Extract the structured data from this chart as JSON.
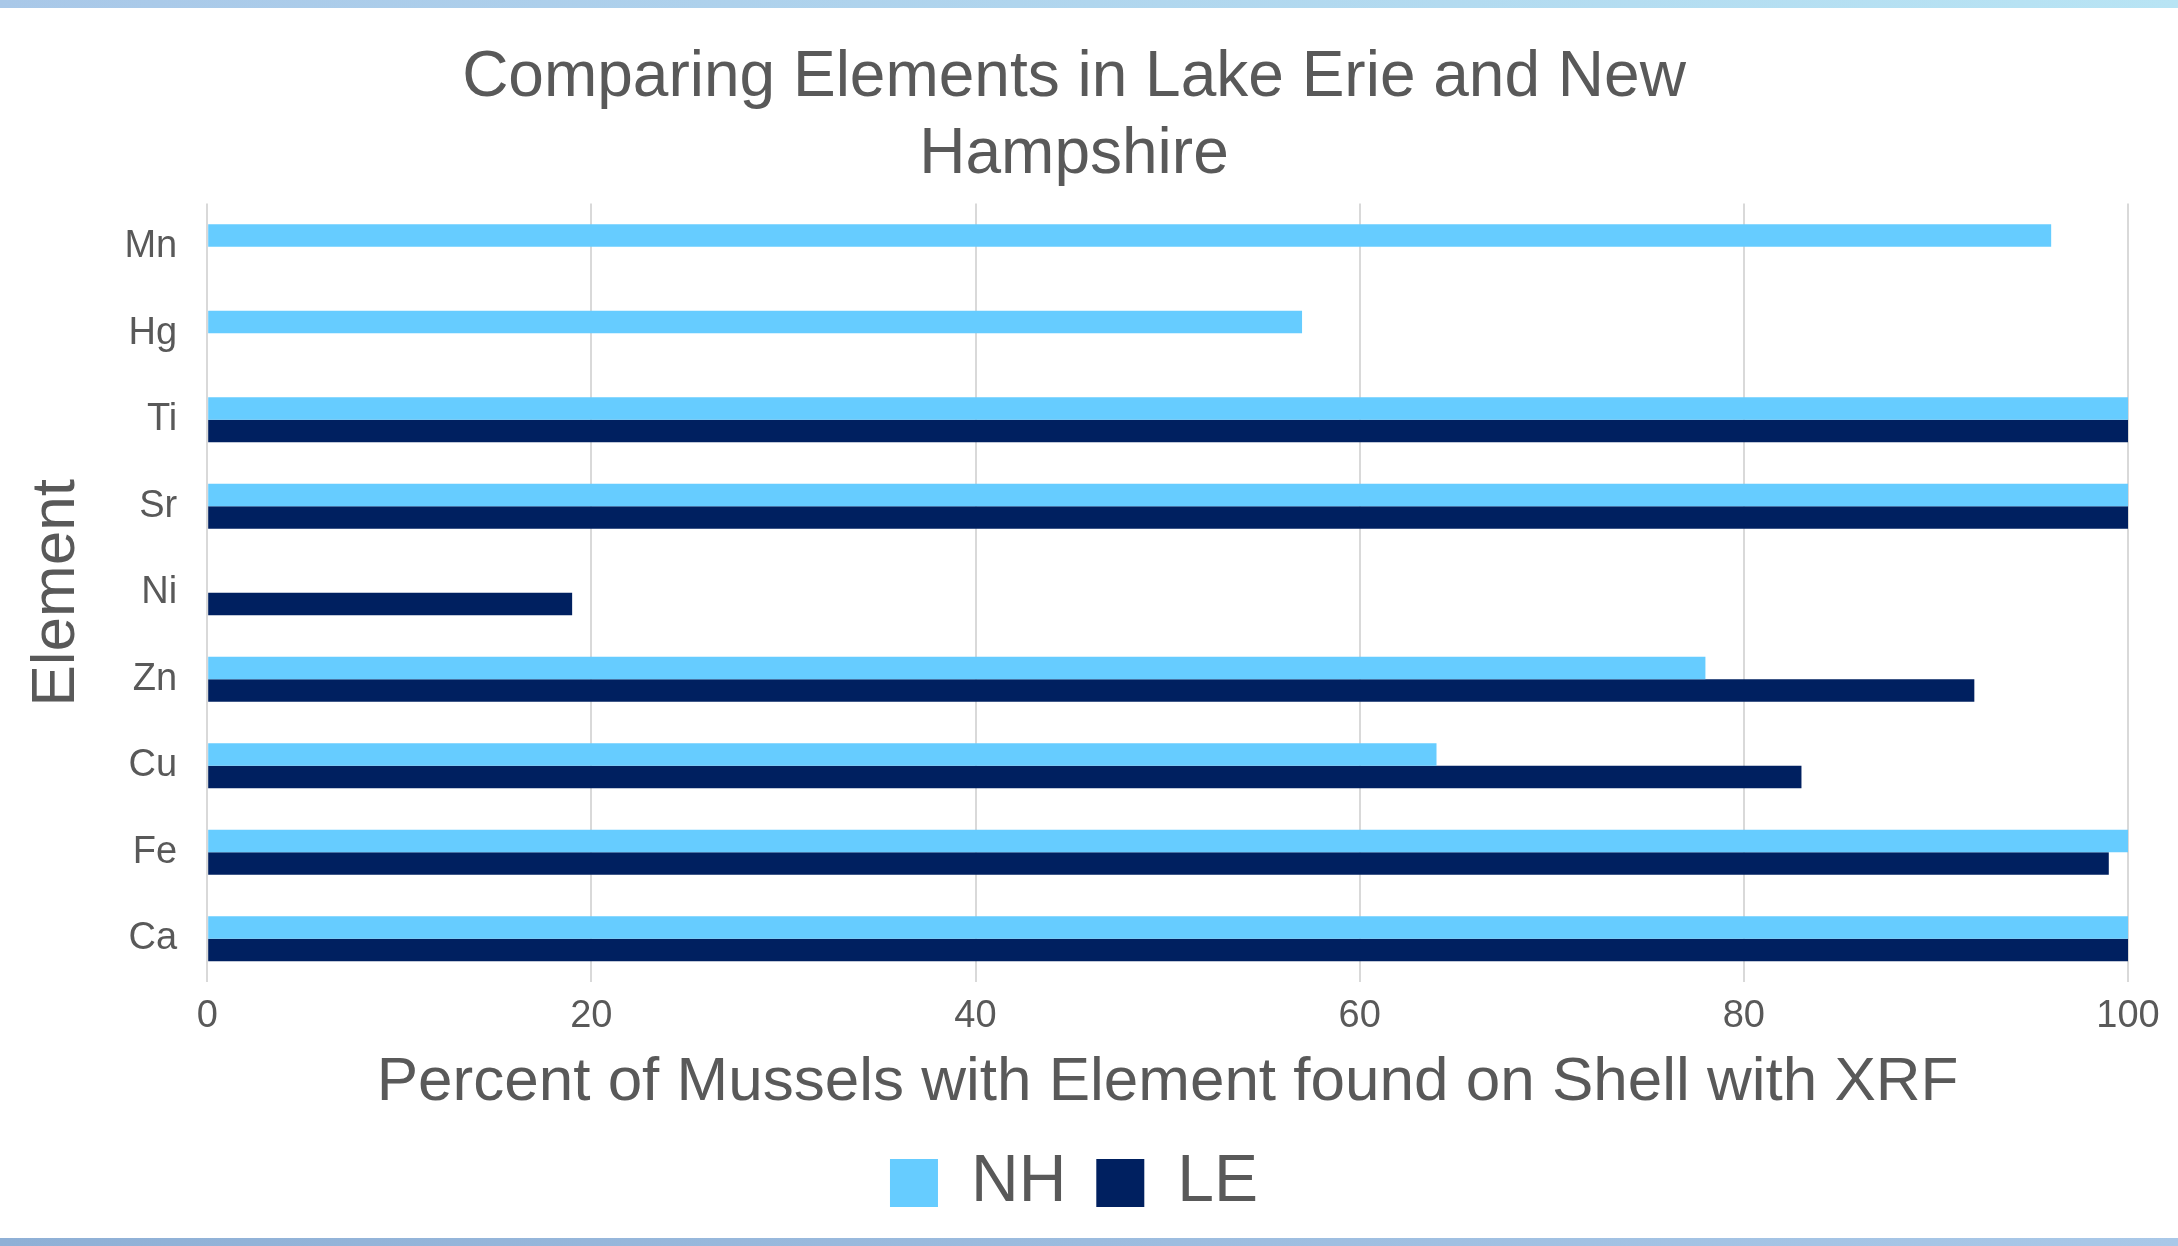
{
  "chart_data": {
    "type": "bar",
    "orientation": "horizontal",
    "title": "Comparing Elements in Lake Erie and New Hampshire",
    "xlabel": "Percent of Mussels with Element found on Shell with XRF",
    "ylabel": "Element",
    "categories": [
      "Mn",
      "Hg",
      "Ti",
      "Sr",
      "Ni",
      "Zn",
      "Cu",
      "Fe",
      "Ca"
    ],
    "series": [
      {
        "name": "NH",
        "color": "#66ccff",
        "values": [
          96,
          57,
          100,
          100,
          null,
          78,
          64,
          100,
          100
        ]
      },
      {
        "name": "LE",
        "color": "#002060",
        "values": [
          null,
          null,
          100,
          100,
          19,
          92,
          83,
          99,
          100
        ]
      }
    ],
    "xlim": [
      0,
      100
    ],
    "xticks": [
      0,
      20,
      40,
      60,
      80,
      100
    ],
    "grid": "x",
    "legend": "bottom"
  }
}
